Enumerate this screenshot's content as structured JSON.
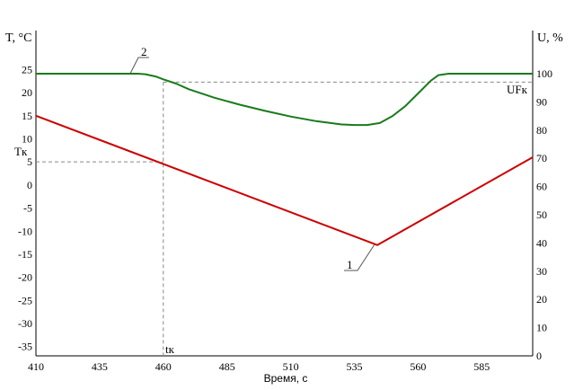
{
  "chart_data": {
    "type": "line",
    "xlabel": "Время, с",
    "ylabel_left": "T, °C",
    "ylabel_right": "U, %",
    "x_ticks": [
      410,
      435,
      460,
      485,
      510,
      535,
      560,
      585
    ],
    "xlim": [
      410,
      605
    ],
    "ylim_left": [
      -37,
      28
    ],
    "left_ticks": [
      25,
      20,
      15,
      10,
      5,
      0,
      -5,
      -10,
      -15,
      -20,
      -25,
      -30,
      -35
    ],
    "right_ticks": [
      100,
      90,
      80,
      70,
      60,
      50,
      40,
      30,
      20,
      10,
      0
    ],
    "grid": false,
    "series": [
      {
        "name": "1",
        "axis": "left",
        "color": "#cc0000",
        "x": [
          410,
          544,
          605
        ],
        "y": [
          15,
          -13,
          6
        ]
      },
      {
        "name": "2",
        "axis": "right",
        "color": "#1a7a1a",
        "x": [
          410,
          450,
          453,
          457,
          460,
          465,
          470,
          480,
          490,
          500,
          510,
          520,
          530,
          535,
          540,
          545,
          550,
          555,
          560,
          565,
          568,
          572,
          580,
          605
        ],
        "y": [
          100,
          100,
          99.8,
          99,
          98,
          96.5,
          94.5,
          91.5,
          89,
          86.8,
          84.8,
          83.2,
          82,
          81.8,
          81.8,
          82.5,
          85,
          88.5,
          93,
          97.5,
          99.5,
          100,
          100,
          100
        ]
      }
    ],
    "annotations": {
      "tk_label": "Tк",
      "tk_value": 5,
      "ufk_label": "UFк",
      "ufk_value": 97,
      "tk_time_label": "tк",
      "tk_time_value": 460,
      "series1_callout": "1",
      "series2_callout": "2"
    }
  }
}
